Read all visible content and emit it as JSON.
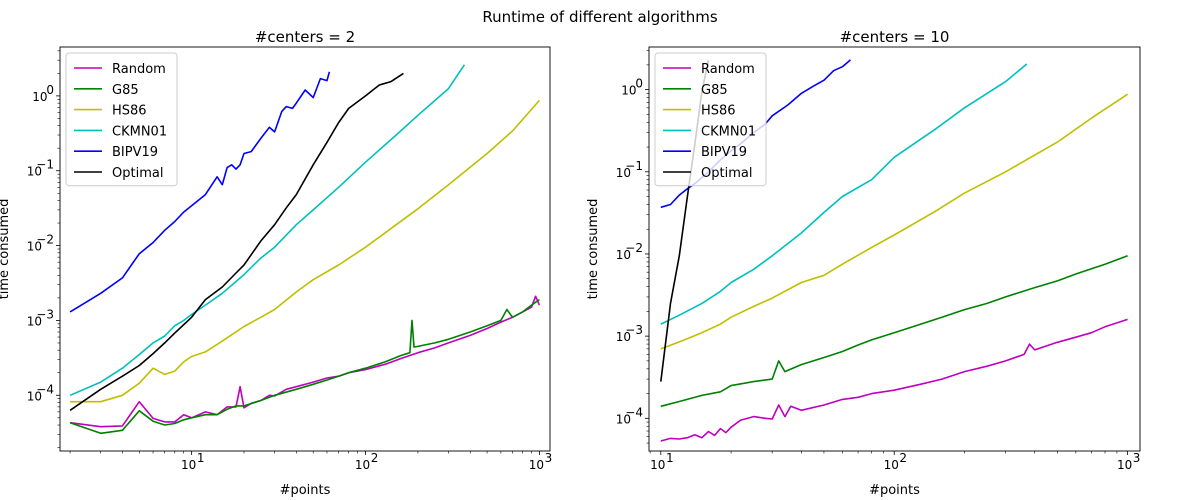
{
  "suptitle": "Runtime of different algorithms",
  "chart_data": [
    {
      "type": "line",
      "title": "#centers = 2",
      "xlabel": "#points",
      "ylabel": "time consumed",
      "xscale": "log",
      "yscale": "log",
      "xlim": [
        1.75,
        1150
      ],
      "ylim": [
        1.8e-05,
        4.5
      ],
      "xticks": [
        {
          "value": 10,
          "label": "10"
        },
        {
          "value": 100,
          "label": "10"
        },
        {
          "value": 1000,
          "label": "10"
        }
      ],
      "xtick_exponents": [
        "1",
        "2",
        "3"
      ],
      "yticks": [
        {
          "value": 0.0001,
          "label": "10"
        },
        {
          "value": 0.001,
          "label": "10"
        },
        {
          "value": 0.01,
          "label": "10"
        },
        {
          "value": 0.1,
          "label": "10"
        },
        {
          "value": 1,
          "label": "10"
        }
      ],
      "ytick_exponents": [
        "−4",
        "−3",
        "−2",
        "−1",
        "0"
      ],
      "legend_position": "top-left",
      "grid": false,
      "series": [
        {
          "name": "Random",
          "color": "#bf00bf",
          "x": [
            2,
            3,
            4,
            5,
            6,
            7,
            8,
            9,
            10,
            12,
            14,
            16,
            18,
            19,
            20,
            22,
            25,
            28,
            30,
            35,
            40,
            50,
            60,
            70,
            80,
            100,
            130,
            160,
            200,
            250,
            300,
            400,
            500,
            600,
            700,
            800,
            900,
            950,
            1000
          ],
          "y": [
            4.3e-05,
            3.8e-05,
            3.9e-05,
            8.2e-05,
            4.9e-05,
            4.4e-05,
            4.4e-05,
            5.5e-05,
            5e-05,
            6e-05,
            5.5e-05,
            7e-05,
            7e-05,
            0.00013,
            6.8e-05,
            7.8e-05,
            8.5e-05,
            0.0001,
            9.8e-05,
            0.00012,
            0.00013,
            0.00015,
            0.00017,
            0.00018,
            0.0002,
            0.00022,
            0.00026,
            0.00031,
            0.00037,
            0.00043,
            0.0005,
            0.00063,
            0.00078,
            0.00095,
            0.0011,
            0.0013,
            0.0015,
            0.0021,
            0.0016
          ]
        },
        {
          "name": "G85",
          "color": "#008000",
          "x": [
            2,
            3,
            4,
            5,
            6,
            7,
            8,
            9,
            10,
            12,
            14,
            16,
            18,
            20,
            25,
            30,
            40,
            50,
            60,
            70,
            80,
            100,
            130,
            160,
            180,
            185,
            190,
            200,
            250,
            300,
            400,
            500,
            600,
            650,
            700,
            800,
            900,
            1000
          ],
          "y": [
            4.3e-05,
            3.1e-05,
            3.4e-05,
            6.2e-05,
            4.5e-05,
            4e-05,
            4.2e-05,
            4.7e-05,
            5e-05,
            5.5e-05,
            5.5e-05,
            6.5e-05,
            7.2e-05,
            7.2e-05,
            8.5e-05,
            0.0001,
            0.00012,
            0.00014,
            0.00016,
            0.00018,
            0.0002,
            0.00023,
            0.00028,
            0.00034,
            0.00037,
            0.001,
            0.00044,
            0.00045,
            0.0005,
            0.00056,
            0.0007,
            0.00085,
            0.001,
            0.0014,
            0.0011,
            0.0013,
            0.0016,
            0.0019
          ]
        },
        {
          "name": "HS86",
          "color": "#bfbf00",
          "x": [
            2,
            3,
            4,
            5,
            6,
            7,
            8,
            9,
            10,
            12,
            15,
            20,
            25,
            30,
            40,
            50,
            70,
            100,
            150,
            200,
            300,
            500,
            700,
            1000
          ],
          "y": [
            8.2e-05,
            8.2e-05,
            0.0001,
            0.000145,
            0.00023,
            0.00019,
            0.00021,
            0.00028,
            0.00033,
            0.00038,
            0.00053,
            0.00083,
            0.0011,
            0.0014,
            0.0024,
            0.0035,
            0.0055,
            0.0095,
            0.019,
            0.031,
            0.065,
            0.17,
            0.34,
            0.87
          ]
        },
        {
          "name": "CKMN01",
          "color": "#00bfbf",
          "x": [
            2,
            3,
            4,
            5,
            6,
            7,
            8,
            9,
            10,
            12,
            15,
            20,
            25,
            30,
            40,
            50,
            70,
            100,
            150,
            200,
            300,
            370
          ],
          "y": [
            0.0001,
            0.00015,
            0.00023,
            0.00035,
            0.0005,
            0.00062,
            0.00085,
            0.001,
            0.0012,
            0.0016,
            0.0023,
            0.0041,
            0.0068,
            0.0095,
            0.019,
            0.03,
            0.06,
            0.13,
            0.3,
            0.55,
            1.25,
            2.6
          ]
        },
        {
          "name": "BIPV19",
          "color": "#0000ff",
          "x": [
            2,
            3,
            4,
            5,
            6,
            7,
            8,
            9,
            10,
            12,
            14,
            15,
            16,
            17,
            18,
            19,
            20,
            22,
            25,
            28,
            30,
            33,
            35,
            38,
            40,
            45,
            50,
            55,
            60,
            62
          ],
          "y": [
            0.0013,
            0.0023,
            0.0037,
            0.0078,
            0.011,
            0.016,
            0.021,
            0.028,
            0.034,
            0.048,
            0.083,
            0.065,
            0.11,
            0.12,
            0.105,
            0.12,
            0.17,
            0.18,
            0.27,
            0.38,
            0.33,
            0.62,
            0.72,
            0.68,
            0.8,
            1.2,
            0.95,
            1.7,
            1.6,
            2.1
          ]
        },
        {
          "name": "Optimal",
          "color": "#000000",
          "x": [
            2,
            3,
            4,
            5,
            6,
            7,
            8,
            10,
            12,
            15,
            18,
            20,
            25,
            30,
            35,
            40,
            50,
            60,
            70,
            80,
            100,
            120,
            140,
            165
          ],
          "y": [
            6.3e-05,
            0.00012,
            0.00018,
            0.00025,
            0.00036,
            0.0005,
            0.00068,
            0.0011,
            0.0019,
            0.0028,
            0.0043,
            0.0055,
            0.0115,
            0.019,
            0.032,
            0.048,
            0.12,
            0.24,
            0.44,
            0.68,
            1.0,
            1.4,
            1.55,
            2.0
          ]
        }
      ]
    },
    {
      "type": "line",
      "title": "#centers = 10",
      "xlabel": "#points",
      "ylabel": "time consumed",
      "xscale": "log",
      "yscale": "log",
      "xlim": [
        8.9,
        1130
      ],
      "ylim": [
        4e-05,
        3.3
      ],
      "xticks": [
        {
          "value": 10,
          "label": "10"
        },
        {
          "value": 100,
          "label": "10"
        },
        {
          "value": 1000,
          "label": "10"
        }
      ],
      "xtick_exponents": [
        "1",
        "2",
        "3"
      ],
      "yticks": [
        {
          "value": 0.0001,
          "label": "10"
        },
        {
          "value": 0.001,
          "label": "10"
        },
        {
          "value": 0.01,
          "label": "10"
        },
        {
          "value": 0.1,
          "label": "10"
        },
        {
          "value": 1,
          "label": "10"
        }
      ],
      "ytick_exponents": [
        "−4",
        "−3",
        "−2",
        "−1",
        "0"
      ],
      "legend_position": "top-left",
      "grid": false,
      "series": [
        {
          "name": "Random",
          "color": "#bf00bf",
          "x": [
            10,
            11,
            12,
            13,
            14,
            15,
            16,
            17,
            18,
            19,
            20,
            22,
            25,
            28,
            30,
            32,
            34,
            36,
            40,
            50,
            60,
            70,
            80,
            100,
            130,
            160,
            200,
            250,
            300,
            360,
            380,
            400,
            500,
            600,
            700,
            800,
            1000
          ],
          "y": [
            5.3e-05,
            5.7e-05,
            5.6e-05,
            5.8e-05,
            6.3e-05,
            5.8e-05,
            6.9e-05,
            6.2e-05,
            7.5e-05,
            6.7e-05,
            7.8e-05,
            9.5e-05,
            0.000105,
            0.0001,
            9.8e-05,
            0.000145,
            0.000105,
            0.00014,
            0.000125,
            0.000145,
            0.00017,
            0.00018,
            0.0002,
            0.00022,
            0.00026,
            0.0003,
            0.00037,
            0.00043,
            0.0005,
            0.0006,
            0.0008,
            0.00068,
            0.00084,
            0.00097,
            0.0011,
            0.0013,
            0.0016
          ]
        },
        {
          "name": "G85",
          "color": "#008000",
          "x": [
            10,
            12,
            15,
            18,
            20,
            25,
            30,
            32,
            34,
            40,
            50,
            60,
            70,
            80,
            100,
            130,
            160,
            200,
            250,
            300,
            400,
            500,
            600,
            700,
            800,
            1000
          ],
          "y": [
            0.00014,
            0.00016,
            0.00019,
            0.00021,
            0.00025,
            0.00028,
            0.0003,
            0.0005,
            0.00037,
            0.00045,
            0.00055,
            0.00065,
            0.00078,
            0.0009,
            0.0011,
            0.0014,
            0.0017,
            0.0021,
            0.0025,
            0.003,
            0.0039,
            0.0047,
            0.0057,
            0.0066,
            0.0075,
            0.0095
          ]
        },
        {
          "name": "HS86",
          "color": "#bfbf00",
          "x": [
            10,
            12,
            15,
            18,
            20,
            25,
            30,
            40,
            50,
            60,
            80,
            100,
            150,
            200,
            300,
            500,
            700,
            1000
          ],
          "y": [
            0.0007,
            0.00085,
            0.0011,
            0.0014,
            0.0017,
            0.0023,
            0.0029,
            0.0045,
            0.0055,
            0.0075,
            0.012,
            0.017,
            0.033,
            0.055,
            0.1,
            0.23,
            0.45,
            0.88
          ]
        },
        {
          "name": "CKMN01",
          "color": "#00bfbf",
          "x": [
            10,
            12,
            15,
            18,
            20,
            25,
            30,
            40,
            50,
            60,
            80,
            100,
            150,
            200,
            300,
            370
          ],
          "y": [
            0.0014,
            0.0018,
            0.0025,
            0.0035,
            0.0045,
            0.0065,
            0.0095,
            0.018,
            0.032,
            0.05,
            0.08,
            0.15,
            0.33,
            0.6,
            1.25,
            2.05
          ]
        },
        {
          "name": "BIPV19",
          "color": "#0000ff",
          "x": [
            10,
            11,
            12,
            13,
            14,
            15,
            16,
            18,
            20,
            22,
            25,
            28,
            30,
            35,
            40,
            45,
            50,
            55,
            60,
            65
          ],
          "y": [
            0.037,
            0.04,
            0.052,
            0.062,
            0.072,
            0.085,
            0.1,
            0.14,
            0.18,
            0.22,
            0.3,
            0.38,
            0.48,
            0.65,
            0.9,
            1.1,
            1.3,
            1.7,
            1.9,
            2.3
          ]
        },
        {
          "name": "Optimal",
          "color": "#000000",
          "x": [
            10,
            11,
            12,
            13,
            14,
            15,
            16
          ],
          "y": [
            0.00028,
            0.0025,
            0.0095,
            0.05,
            0.22,
            0.95,
            2.3
          ]
        }
      ]
    }
  ]
}
